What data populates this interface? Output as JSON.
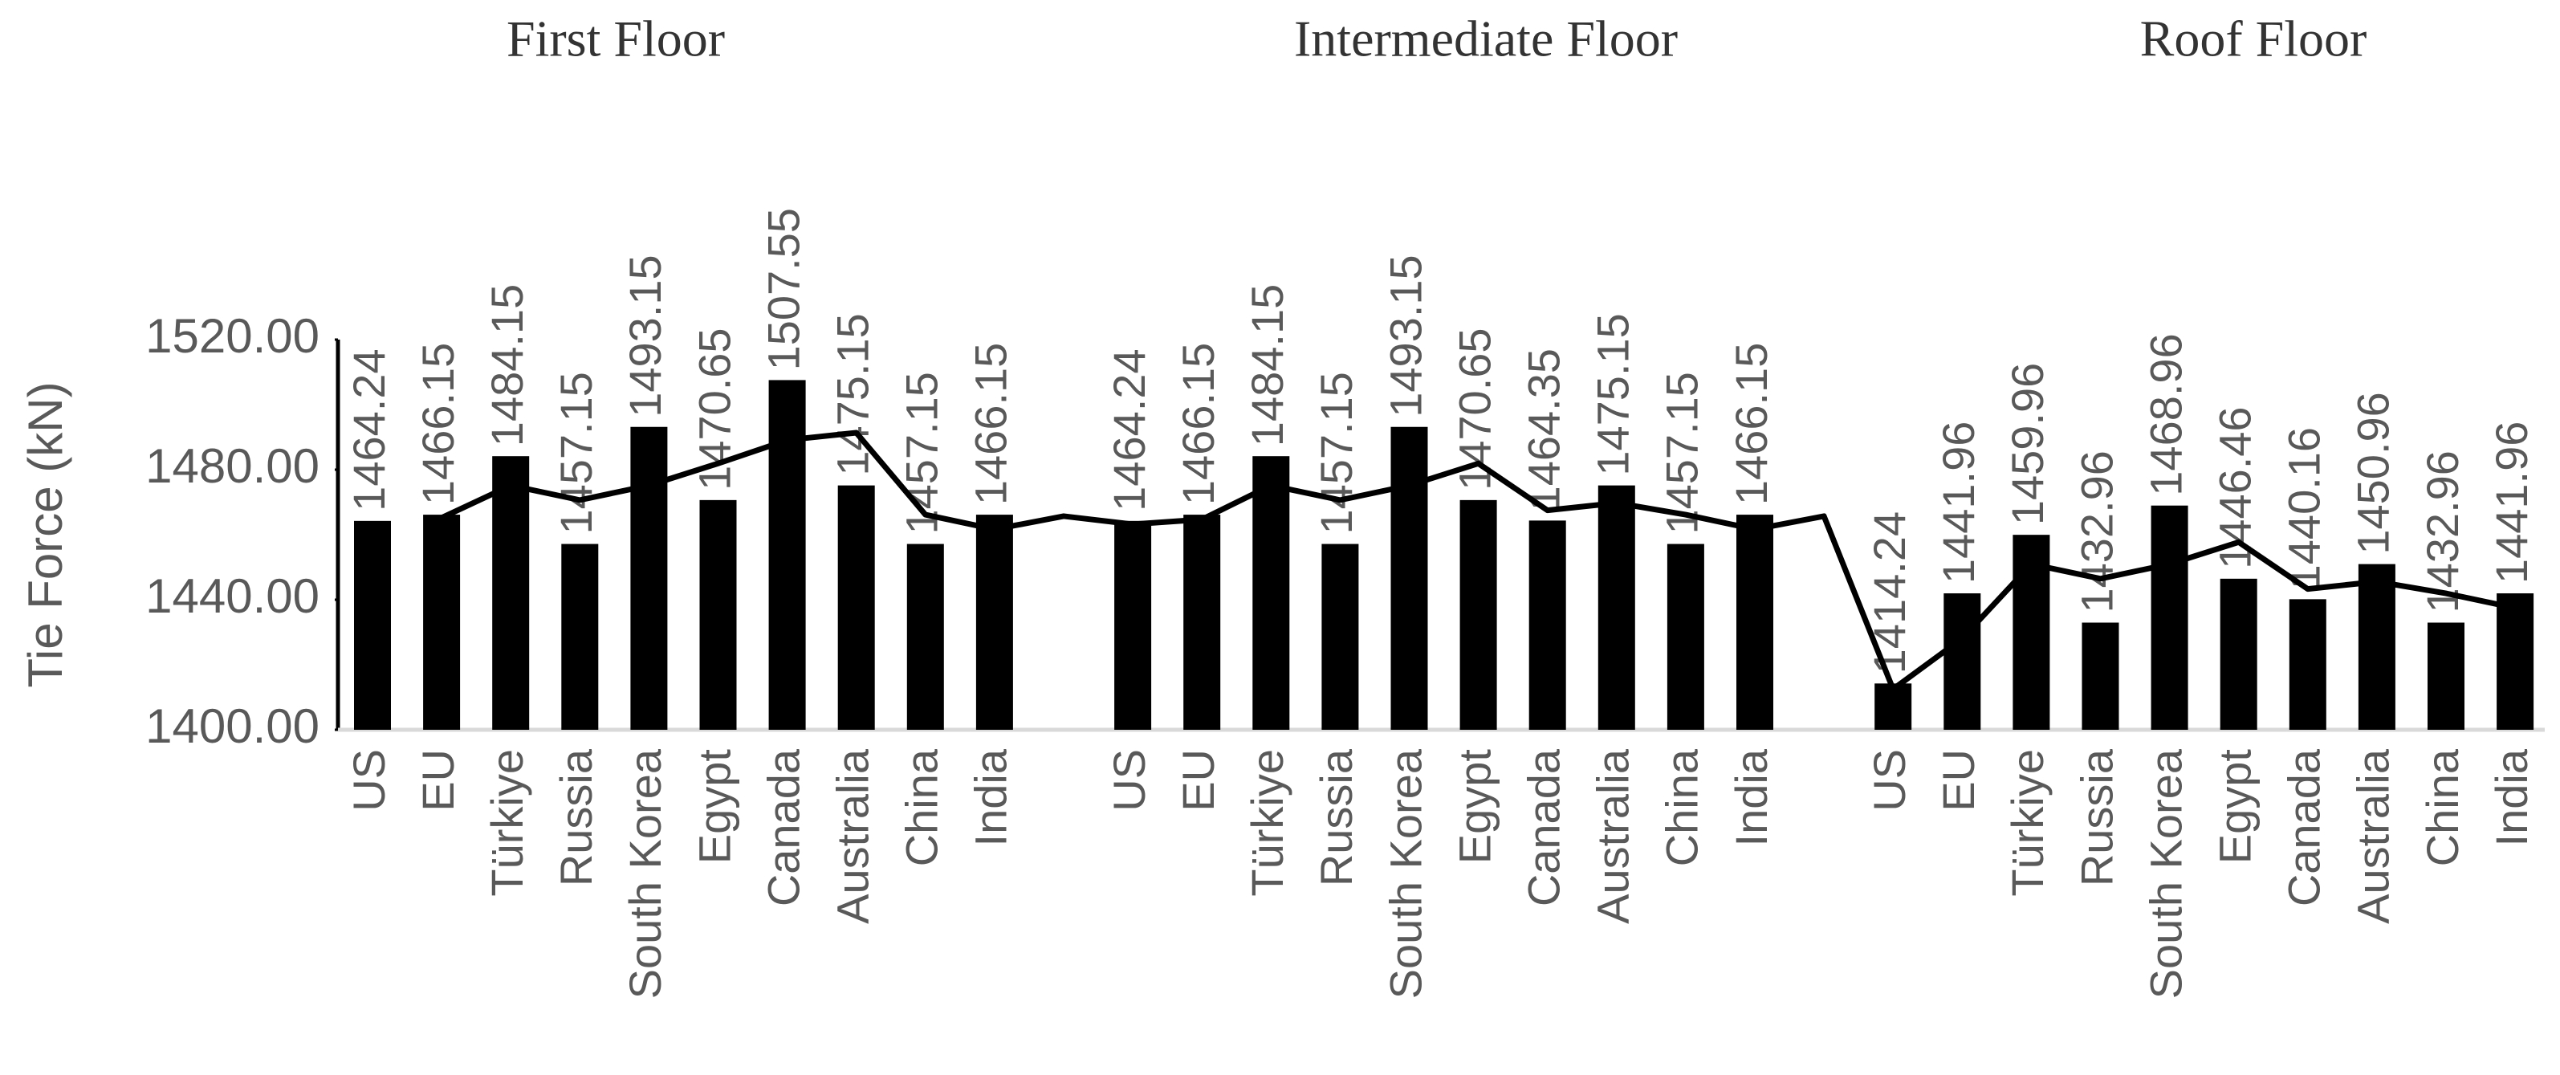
{
  "chart_data": {
    "type": "bar",
    "annotations": [
      "First Floor",
      "Intermediate Floor",
      "Roof Floor"
    ],
    "y_label": "Tie Force (kN)",
    "categories": [
      "US",
      "EU",
      "Türkiye",
      "Russia",
      "South Korea",
      "Egypt",
      "Canada",
      "Australia",
      "China",
      "India",
      null,
      "US",
      "EU",
      "Türkiye",
      "Russia",
      "South Korea",
      "Egypt",
      "Canada",
      "Australia",
      "China",
      "India",
      null,
      "US",
      "EU",
      "Türkiye",
      "Russia",
      "South Korea",
      "Egypt",
      "Canada",
      "Australia",
      "China",
      "India"
    ],
    "series": [
      {
        "color": "#000000",
        "type": "bar",
        "values": [
          1464.24,
          1466.15,
          1484.15,
          1457.15,
          1493.15,
          1470.65,
          1507.55,
          1475.15,
          1457.15,
          1466.15,
          null,
          1464.24,
          1466.15,
          1484.15,
          1457.15,
          1493.15,
          1470.65,
          1464.35,
          1475.15,
          1457.15,
          1466.15,
          null,
          1414.24,
          1441.96,
          1459.96,
          1432.96,
          1468.96,
          1446.46,
          1440.16,
          1450.96,
          1432.96,
          1441.96
        ]
      },
      {
        "color": "#000000",
        "type": "line",
        "values": [
          null,
          1465.2,
          1475.15,
          1470.65,
          1475.15,
          1481.9,
          1489.1,
          1491.35,
          1466.15,
          1461.65,
          1465.7,
          1463.2,
          1464.7,
          1475.15,
          1470.65,
          1475.15,
          1481.9,
          1467.5,
          1469.75,
          1466.15,
          1461.65,
          1465.7,
          1412.5,
          1428.1,
          1450.96,
          1446.46,
          1450.96,
          1457.71,
          1443.31,
          1445.56,
          1441.96,
          1437.46
        ]
      }
    ],
    "ylim": [
      1400,
      1520
    ],
    "yticks": [
      {
        "value": 1400,
        "label": "1400.00"
      },
      {
        "value": 1440,
        "label": "1440.00"
      },
      {
        "value": 1480,
        "label": "1480.00"
      },
      {
        "value": 1520,
        "label": "1520.00"
      }
    ],
    "grid": false
  }
}
